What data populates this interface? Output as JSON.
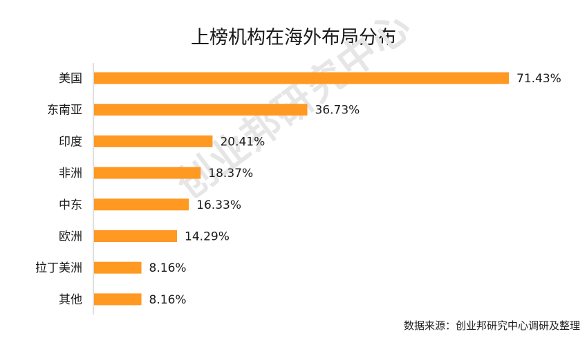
{
  "chart_data": {
    "type": "bar",
    "orientation": "horizontal",
    "title": "上榜机构在海外布局分布",
    "categories": [
      "美国",
      "东南亚",
      "印度",
      "非洲",
      "中东",
      "欧洲",
      "拉丁美洲",
      "其他"
    ],
    "values": [
      71.43,
      36.73,
      20.41,
      18.37,
      16.33,
      14.29,
      8.16,
      8.16
    ],
    "value_labels": [
      "71.43%",
      "36.73%",
      "20.41%",
      "18.37%",
      "16.33%",
      "14.29%",
      "8.16%",
      "8.16%"
    ],
    "xlim": [
      0,
      71.43
    ],
    "grid": false,
    "bar_color": "#ff9922",
    "axis_color": "#bfbfbf"
  },
  "watermark": "创业邦研究中心",
  "source_note": "数据来源：创业邦研究中心调研及整理"
}
